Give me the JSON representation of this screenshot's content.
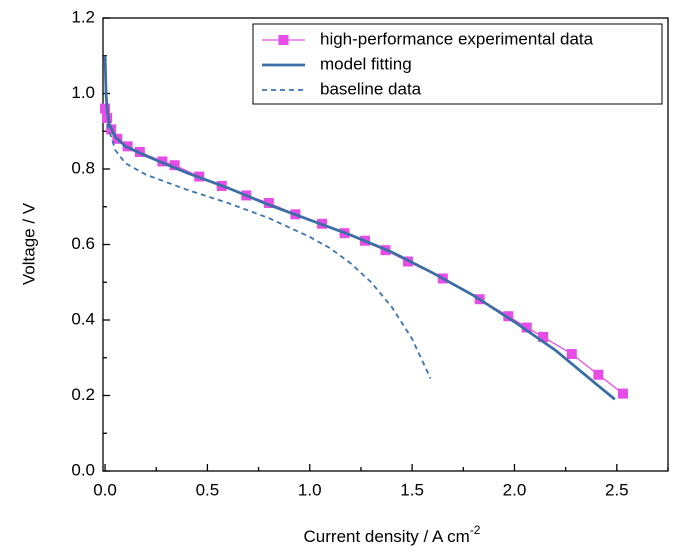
{
  "chart_data": {
    "type": "line",
    "xlabel": "Current density / A cm",
    "xlabel_superscript": "-2",
    "ylabel": "Voltage / V",
    "xlim": [
      -0.01,
      2.75
    ],
    "ylim": [
      0,
      1.2
    ],
    "xticks": [
      {
        "value": 0,
        "label": "0.0"
      },
      0.5,
      {
        "value": 1,
        "label": "1.0"
      },
      1.5,
      {
        "value": 2,
        "label": "2.0"
      },
      2.5
    ],
    "yticks": [
      {
        "value": 0,
        "label": "0.0"
      },
      0.2,
      0.4,
      0.6,
      0.8,
      {
        "value": 1,
        "label": "1.0"
      },
      1.2
    ],
    "xminorticks": [
      0.25,
      0.75,
      1.25,
      1.75,
      2.25,
      2.75
    ],
    "yminorticks": [
      0.1,
      0.3,
      0.5,
      0.7,
      0.9,
      1.1
    ],
    "legend": "upper right",
    "series": [
      {
        "name": "high-performance experimental data",
        "color": "#e64de6",
        "marker": "square",
        "style": "solid",
        "x": [
          0.0,
          0.01,
          0.03,
          0.06,
          0.11,
          0.17,
          0.28,
          0.34,
          0.46,
          0.57,
          0.69,
          0.8,
          0.93,
          1.06,
          1.17,
          1.27,
          1.37,
          1.48,
          1.65,
          1.83,
          1.97,
          2.06,
          2.14,
          2.28,
          2.41,
          2.53
        ],
        "values": [
          0.96,
          0.935,
          0.905,
          0.88,
          0.86,
          0.845,
          0.82,
          0.81,
          0.78,
          0.755,
          0.73,
          0.71,
          0.68,
          0.655,
          0.63,
          0.61,
          0.585,
          0.555,
          0.51,
          0.455,
          0.41,
          0.38,
          0.355,
          0.31,
          0.255,
          0.205
        ]
      },
      {
        "name": "model fitting",
        "color": "#3a6ea5",
        "style": "solid",
        "x": [
          0,
          0.005,
          0.01,
          0.02,
          0.05,
          0.1,
          0.2,
          0.4,
          0.6,
          0.8,
          1.0,
          1.2,
          1.4,
          1.6,
          1.8,
          2.0,
          2.2,
          2.4,
          2.49
        ],
        "values": [
          1.1,
          1.0,
          0.96,
          0.92,
          0.885,
          0.86,
          0.835,
          0.79,
          0.75,
          0.705,
          0.665,
          0.625,
          0.58,
          0.525,
          0.465,
          0.395,
          0.32,
          0.23,
          0.19
        ]
      },
      {
        "name": "baseline data",
        "color": "#3a75b0",
        "style": "dashed",
        "x": [
          0.01,
          0.05,
          0.1,
          0.2,
          0.4,
          0.6,
          0.8,
          1.0,
          1.1,
          1.2,
          1.3,
          1.4,
          1.5,
          1.59
        ],
        "values": [
          0.92,
          0.85,
          0.815,
          0.785,
          0.745,
          0.71,
          0.67,
          0.62,
          0.59,
          0.55,
          0.5,
          0.435,
          0.35,
          0.245
        ]
      }
    ]
  }
}
